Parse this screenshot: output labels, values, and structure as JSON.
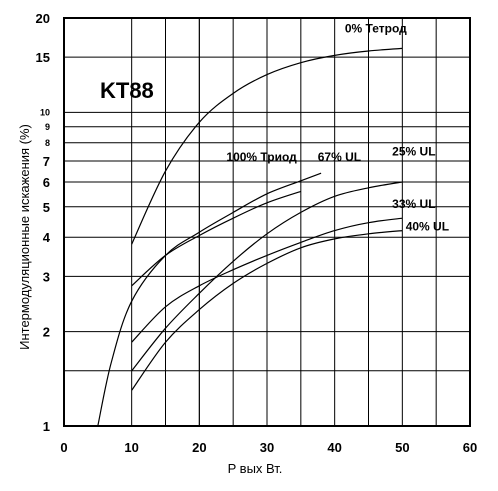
{
  "chart_data": {
    "type": "line",
    "title": "KT88",
    "xlabel": "P вых Вт.",
    "ylabel": "Интермодуляционные искажения (%)",
    "xlim": [
      0,
      60
    ],
    "ylim": [
      1,
      20
    ],
    "y_scale": "log",
    "grid": true,
    "x_ticks": [
      "0",
      "10",
      "20",
      "30",
      "40",
      "50",
      "60"
    ],
    "y_ticks": [
      "1",
      "2",
      "3",
      "4",
      "5",
      "6",
      "7",
      "8",
      "9",
      "10",
      "15",
      "20"
    ],
    "series": [
      {
        "name": "0% Тетрод",
        "x": [
          10,
          15,
          20,
          25,
          30,
          35,
          40,
          45,
          50
        ],
        "y": [
          3.8,
          6.5,
          9.3,
          11.5,
          13.2,
          14.4,
          15.2,
          15.7,
          16.0
        ]
      },
      {
        "name": "100% Триод",
        "x": [
          10,
          15,
          20,
          25,
          30,
          35
        ],
        "y": [
          2.8,
          3.5,
          4.05,
          4.6,
          5.15,
          5.6
        ]
      },
      {
        "name": "67% UL",
        "x": [
          5,
          7,
          10,
          15,
          20,
          25,
          30,
          35,
          38
        ],
        "y": [
          1.0,
          1.6,
          2.5,
          3.5,
          4.15,
          4.8,
          5.5,
          6.05,
          6.4
        ]
      },
      {
        "name": "25% UL",
        "x": [
          10,
          15,
          20,
          25,
          30,
          35,
          40,
          45,
          50
        ],
        "y": [
          1.5,
          2.05,
          2.65,
          3.35,
          4.1,
          4.8,
          5.4,
          5.75,
          6.0
        ]
      },
      {
        "name": "33% UL",
        "x": [
          10,
          15,
          20,
          25,
          30,
          35,
          40,
          45,
          50
        ],
        "y": [
          1.85,
          2.4,
          2.8,
          3.15,
          3.5,
          3.85,
          4.2,
          4.45,
          4.6
        ]
      },
      {
        "name": "40% UL",
        "x": [
          10,
          15,
          20,
          25,
          30,
          35,
          40,
          45,
          50
        ],
        "y": [
          1.3,
          1.85,
          2.35,
          2.85,
          3.3,
          3.7,
          3.95,
          4.1,
          4.2
        ]
      }
    ],
    "curve_labels": [
      {
        "text": "0% Тетрод",
        "x": 41.5,
        "y": 18.0
      },
      {
        "text": "100% Триод",
        "x": 24,
        "y": 7.0
      },
      {
        "text": "67% UL",
        "x": 37.5,
        "y": 7.0
      },
      {
        "text": "25% UL",
        "x": 48.5,
        "y": 7.3
      },
      {
        "text": "33% UL",
        "x": 48.5,
        "y": 4.95
      },
      {
        "text": "40% UL",
        "x": 50.5,
        "y": 4.2
      }
    ]
  }
}
